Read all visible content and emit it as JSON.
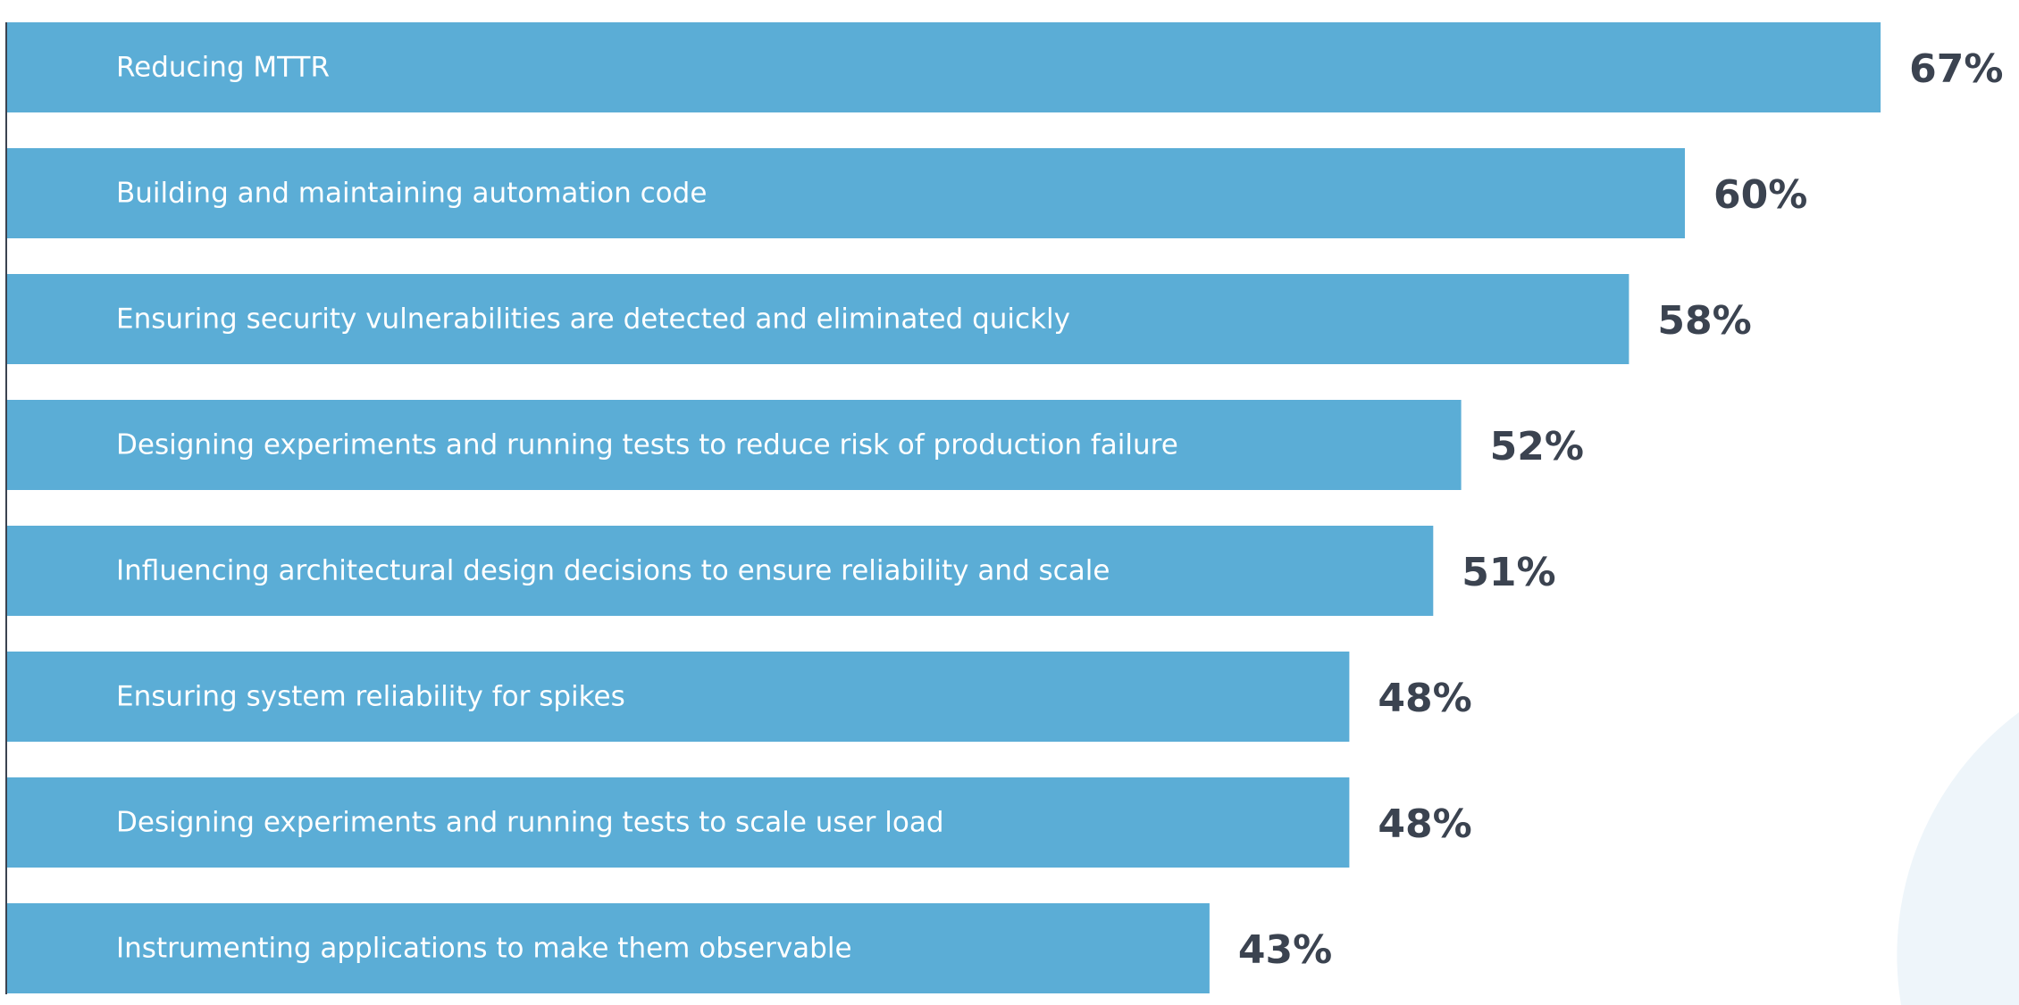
{
  "colors": {
    "bar": "#5badd6",
    "value_text": "#3b4350",
    "bar_text": "#ffffff",
    "axis": "#3b4350",
    "decor": "#eef5fa"
  },
  "chart_data": {
    "type": "bar",
    "orientation": "horizontal",
    "categories": [
      "Reducing MTTR",
      "Building and maintaining automation code",
      "Ensuring security vulnerabilities are detected and eliminated quickly",
      "Designing experiments and running tests to reduce risk of production failure",
      "Influencing architectural design decisions to ensure reliability and scale",
      "Ensuring system reliability for spikes",
      "Designing experiments and running tests to scale user load",
      "Instrumenting applications to make them observable"
    ],
    "values": [
      67,
      60,
      58,
      52,
      51,
      48,
      48,
      43
    ],
    "value_labels": [
      "67%",
      "60%",
      "58%",
      "52%",
      "51%",
      "48%",
      "48%",
      "43%"
    ],
    "unit": "%",
    "grid": false,
    "legend": "none"
  }
}
